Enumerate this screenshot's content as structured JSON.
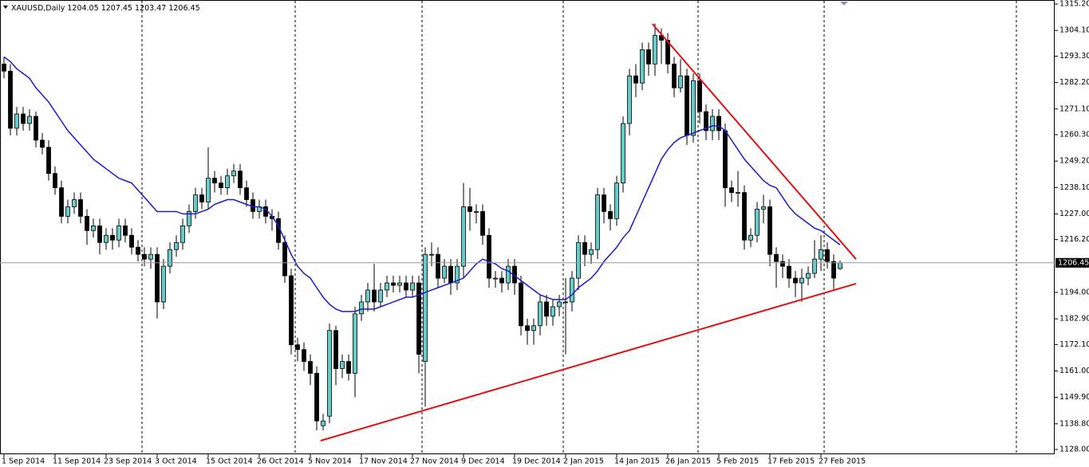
{
  "chart_data": {
    "type": "candlestick",
    "title": "XAUUSD,Daily",
    "categories": [
      "1 Sep 2014",
      null,
      null,
      null,
      null,
      null,
      null,
      null,
      "11 Sep 2014",
      null,
      null,
      null,
      null,
      null,
      null,
      null,
      "23 Sep 2014",
      null,
      null,
      null,
      null,
      null,
      null,
      null,
      "3 Oct 2014",
      null,
      null,
      null,
      null,
      null,
      null,
      null,
      "15 Oct 2014",
      null,
      null,
      null,
      null,
      null,
      null,
      null,
      "26 Oct 2014",
      null,
      null,
      null,
      null,
      null,
      null,
      null,
      "5 Nov 2014",
      null,
      null,
      null,
      null,
      null,
      null,
      null,
      "17 Nov 2014",
      null,
      null,
      null,
      null,
      null,
      null,
      null,
      "27 Nov 2014",
      null,
      null,
      null,
      null,
      null,
      null,
      null,
      "9 Dec 2014",
      null,
      null,
      null,
      null,
      null,
      null,
      null,
      "19 Dec 2014",
      null,
      null,
      null,
      null,
      null,
      null,
      null,
      "2 Jan 2015",
      null,
      null,
      null,
      null,
      null,
      null,
      null,
      "14 Jan 2015",
      null,
      null,
      null,
      null,
      null,
      null,
      null,
      "26 Jan 2015",
      null,
      null,
      null,
      null,
      null,
      null,
      null,
      "5 Feb 2015",
      null,
      null,
      null,
      null,
      null,
      null,
      null,
      "17 Feb 2015",
      null,
      null,
      null,
      null,
      null,
      null,
      null,
      "27 Feb 2015",
      null,
      null,
      null
    ],
    "open": [
      1290,
      1287,
      1263,
      1269,
      1265,
      1268,
      1258,
      1255,
      1244,
      1238,
      1226,
      1230,
      1233,
      1226,
      1220,
      1222,
      1215,
      1218,
      1216,
      1222,
      1218,
      1213,
      1210,
      1208,
      1210,
      1190,
      1205,
      1212,
      1215,
      1222,
      1228,
      1235,
      1232,
      1242,
      1240,
      1238,
      1243,
      1245,
      1238,
      1233,
      1228,
      1230,
      1226,
      1225,
      1215,
      1201,
      1172,
      1170,
      1165,
      1160,
      1138,
      1142,
      1178,
      1162,
      1165,
      1160,
      1185,
      1190,
      1195,
      1190,
      1195,
      1198,
      1197,
      1198,
      1195,
      1198,
      1165,
      1210,
      1210,
      1200,
      1205,
      1198,
      1205,
      1230,
      1228,
      1228,
      1218,
      1200,
      1200,
      1198,
      1205,
      1198,
      1180,
      1178,
      1180,
      1190,
      1184,
      1188,
      1190,
      1190,
      1200,
      1215,
      1210,
      1212,
      1235,
      1228,
      1225,
      1240,
      1265,
      1285,
      1282,
      1296,
      1290,
      1302,
      1300,
      1290,
      1280,
      1285,
      1260,
      1283,
      1270,
      1262,
      1268,
      1262,
      1238,
      1236,
      1236,
      1216,
      1218,
      1229,
      1230,
      1210,
      1207,
      1205,
      1200,
      1198,
      1200,
      1202,
      1208,
      1212,
      1207,
      1204.05
    ],
    "high": [
      1293,
      1290,
      1272,
      1272,
      1271,
      1270,
      1261,
      1258,
      1247,
      1241,
      1233,
      1236,
      1236,
      1229,
      1225,
      1225,
      1221,
      1221,
      1225,
      1225,
      1221,
      1216,
      1213,
      1213,
      1213,
      1208,
      1215,
      1218,
      1225,
      1231,
      1238,
      1238,
      1255,
      1245,
      1243,
      1246,
      1248,
      1248,
      1241,
      1236,
      1233,
      1233,
      1229,
      1228,
      1218,
      1204,
      1175,
      1173,
      1168,
      1163,
      1143,
      1181,
      1180,
      1168,
      1168,
      1188,
      1193,
      1198,
      1206,
      1198,
      1201,
      1201,
      1201,
      1201,
      1201,
      1201,
      1213,
      1215,
      1213,
      1208,
      1208,
      1208,
      1240,
      1238,
      1231,
      1231,
      1221,
      1203,
      1203,
      1208,
      1208,
      1201,
      1183,
      1183,
      1193,
      1193,
      1191,
      1193,
      1200,
      1203,
      1218,
      1218,
      1215,
      1238,
      1238,
      1231,
      1243,
      1268,
      1288,
      1290,
      1299,
      1299,
      1307,
      1305,
      1303,
      1293,
      1292,
      1288,
      1286,
      1286,
      1273,
      1271,
      1271,
      1265,
      1241,
      1245,
      1239,
      1221,
      1232,
      1235,
      1233,
      1213,
      1210,
      1208,
      1203,
      1204,
      1205,
      1216,
      1218,
      1215,
      1210,
      1207.45
    ],
    "low": [
      1284,
      1260,
      1260,
      1262,
      1262,
      1255,
      1252,
      1241,
      1235,
      1223,
      1223,
      1227,
      1223,
      1214,
      1217,
      1210,
      1212,
      1212,
      1213,
      1215,
      1210,
      1207,
      1205,
      1204,
      1183,
      1187,
      1202,
      1209,
      1212,
      1219,
      1225,
      1229,
      1229,
      1236,
      1235,
      1235,
      1240,
      1235,
      1230,
      1225,
      1225,
      1223,
      1220,
      1212,
      1198,
      1168,
      1165,
      1161,
      1155,
      1136,
      1136,
      1139,
      1155,
      1158,
      1157,
      1150,
      1182,
      1186,
      1186,
      1188,
      1192,
      1194,
      1194,
      1192,
      1192,
      1160,
      1146,
      1205,
      1196,
      1198,
      1193,
      1195,
      1200,
      1220,
      1223,
      1214,
      1196,
      1196,
      1194,
      1195,
      1193,
      1176,
      1172,
      1172,
      1176,
      1180,
      1180,
      1184,
      1168,
      1186,
      1195,
      1205,
      1206,
      1208,
      1223,
      1220,
      1222,
      1236,
      1260,
      1276,
      1279,
      1285,
      1285,
      1290,
      1286,
      1276,
      1278,
      1256,
      1257,
      1265,
      1258,
      1258,
      1258,
      1230,
      1232,
      1230,
      1212,
      1213,
      1215,
      1223,
      1205,
      1196,
      1200,
      1196,
      1192,
      1190,
      1197,
      1200,
      1203,
      1204,
      1195,
      1203.47
    ],
    "close": [
      1287,
      1263,
      1269,
      1265,
      1268,
      1258,
      1255,
      1244,
      1238,
      1226,
      1230,
      1233,
      1226,
      1220,
      1222,
      1215,
      1218,
      1216,
      1222,
      1218,
      1213,
      1210,
      1208,
      1210,
      1190,
      1205,
      1212,
      1215,
      1222,
      1228,
      1235,
      1232,
      1242,
      1240,
      1238,
      1243,
      1245,
      1238,
      1233,
      1228,
      1230,
      1226,
      1225,
      1215,
      1201,
      1172,
      1170,
      1165,
      1160,
      1140,
      1140,
      1178,
      1162,
      1165,
      1160,
      1185,
      1190,
      1195,
      1190,
      1195,
      1198,
      1197,
      1198,
      1195,
      1198,
      1168,
      1210,
      1210,
      1200,
      1205,
      1198,
      1205,
      1230,
      1228,
      1228,
      1218,
      1200,
      1200,
      1198,
      1205,
      1198,
      1180,
      1178,
      1180,
      1190,
      1184,
      1188,
      1190,
      1190,
      1200,
      1215,
      1210,
      1212,
      1235,
      1228,
      1225,
      1240,
      1265,
      1285,
      1282,
      1296,
      1290,
      1302,
      1300,
      1290,
      1280,
      1285,
      1260,
      1283,
      1270,
      1262,
      1268,
      1262,
      1238,
      1236,
      1236,
      1216,
      1218,
      1229,
      1230,
      1210,
      1207,
      1205,
      1200,
      1198,
      1200,
      1202,
      1208,
      1212,
      1207,
      1200,
      1206.45
    ],
    "up_color": "#66cccc",
    "down_color": "#000000",
    "ma": {
      "color": "#1a1ad0",
      "values": [
        1293,
        1291,
        1288,
        1286,
        1284,
        1280,
        1277,
        1274,
        1270,
        1266,
        1262,
        1259,
        1256,
        1253,
        1250,
        1248,
        1246,
        1244,
        1242,
        1241,
        1240,
        1237,
        1234,
        1231,
        1228,
        1228,
        1228,
        1228,
        1227,
        1227,
        1227,
        1228,
        1229,
        1231,
        1232,
        1233,
        1233,
        1232,
        1231,
        1230,
        1230,
        1229,
        1226,
        1222,
        1216,
        1210,
        1205,
        1202,
        1200,
        1196,
        1192,
        1189,
        1187,
        1186,
        1186,
        1186,
        1187,
        1187,
        1187,
        1188,
        1189,
        1190,
        1191,
        1192,
        1192,
        1193,
        1194,
        1195,
        1196,
        1197,
        1198,
        1199,
        1200,
        1203,
        1206,
        1208,
        1207,
        1206,
        1204,
        1203,
        1201,
        1199,
        1197,
        1195,
        1193,
        1192,
        1191,
        1191,
        1191,
        1193,
        1196,
        1198,
        1200,
        1203,
        1207,
        1210,
        1213,
        1217,
        1220,
        1226,
        1232,
        1238,
        1244,
        1250,
        1254,
        1257,
        1259,
        1260,
        1261,
        1262,
        1263,
        1264,
        1264,
        1262,
        1258,
        1254,
        1250,
        1247,
        1244,
        1241,
        1239,
        1238,
        1234,
        1230,
        1227,
        1225,
        1223,
        1221,
        1220,
        1218,
        1216,
        1214
      ]
    },
    "trendlines": [
      {
        "color": "#e01010",
        "x": [
          101.6,
          133.5
        ],
        "y": [
          1306.8,
          1208.0
        ]
      },
      {
        "color": "#e01010",
        "x": [
          49.6,
          133.5
        ],
        "y": [
          1131.7,
          1197.7
        ]
      }
    ],
    "ylim": [
      1126.0,
      1316.9
    ],
    "yticks": [
      {
        "value": 1315.2,
        "label": "1315.20"
      },
      {
        "value": 1304.1,
        "label": "1304.10"
      },
      {
        "value": 1293.3,
        "label": "1293.30"
      },
      {
        "value": 1282.2,
        "label": "1282.20"
      },
      {
        "value": 1271.1,
        "label": "1271.10"
      },
      {
        "value": 1260.3,
        "label": "1260.30"
      },
      {
        "value": 1249.2,
        "label": "1249.20"
      },
      {
        "value": 1238.1,
        "label": "1238.10"
      },
      {
        "value": 1227,
        "label": "1227.00"
      },
      {
        "value": 1216.2,
        "label": "1216.20"
      },
      {
        "value": 1194,
        "label": "1194.00"
      },
      {
        "value": 1182.9,
        "label": "1182.90"
      },
      {
        "value": 1172.1,
        "label": "1172.10"
      },
      {
        "value": 1161,
        "label": "1161.00"
      },
      {
        "value": 1149.9,
        "label": "1149.90"
      },
      {
        "value": 1138.8,
        "label": "1138.80"
      },
      {
        "value": 1128,
        "label": "1128.00"
      }
    ]
  }
}
